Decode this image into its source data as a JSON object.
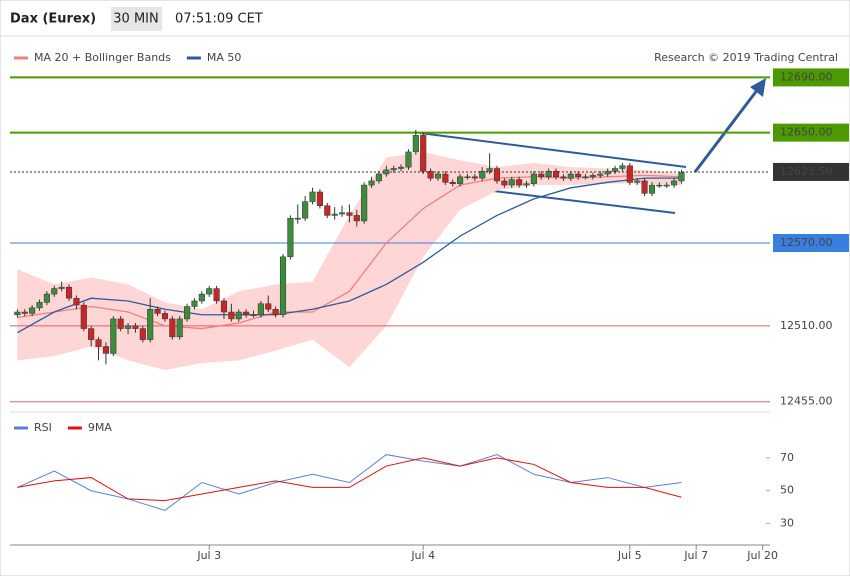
{
  "header": {
    "title": "Dax (Eurex)",
    "interval": "30 MIN",
    "time": "07:51:09 CET"
  },
  "chart_data": [
    {
      "type": "candlestick",
      "credit": "Research © 2019 Trading Central",
      "xlim": [
        -1,
        102
      ],
      "ylim": [
        12449,
        12699
      ],
      "xticks": [
        {
          "value": 26,
          "label": "Jul 3"
        },
        {
          "value": 55,
          "label": "Jul 4"
        },
        {
          "value": 83,
          "label": "Jul 5"
        },
        {
          "value": 92,
          "label": "Jul 7"
        },
        {
          "value": 101,
          "label": "Jul 20"
        }
      ],
      "up_color": "#3d8b3d",
      "down_color": "#c62828",
      "candles": [
        [
          12518,
          12522,
          12516,
          12520
        ],
        [
          12520,
          12522,
          12517,
          12519
        ],
        [
          12519,
          12525,
          12517,
          12523
        ],
        [
          12523,
          12529,
          12521,
          12527
        ],
        [
          12527,
          12535,
          12525,
          12533
        ],
        [
          12533,
          12539,
          12531,
          12537
        ],
        [
          12537,
          12542,
          12535,
          12538
        ],
        [
          12538,
          12540,
          12528,
          12530
        ],
        [
          12530,
          12532,
          12522,
          12525
        ],
        [
          12525,
          12527,
          12506,
          12508
        ],
        [
          12508,
          12510,
          12495,
          12500
        ],
        [
          12500,
          12502,
          12485,
          12495
        ],
        [
          12495,
          12498,
          12482,
          12490
        ],
        [
          12490,
          12517,
          12488,
          12515
        ],
        [
          12515,
          12517,
          12506,
          12508
        ],
        [
          12508,
          12512,
          12504,
          12510
        ],
        [
          12510,
          12512,
          12505,
          12508
        ],
        [
          12508,
          12510,
          12498,
          12500
        ],
        [
          12500,
          12530,
          12498,
          12522
        ],
        [
          12522,
          12524,
          12517,
          12519
        ],
        [
          12519,
          12521,
          12513,
          12515
        ],
        [
          12515,
          12517,
          12500,
          12502
        ],
        [
          12502,
          12517,
          12500,
          12515
        ],
        [
          12515,
          12526,
          12513,
          12524
        ],
        [
          12524,
          12530,
          12522,
          12528
        ],
        [
          12528,
          12535,
          12526,
          12533
        ],
        [
          12533,
          12539,
          12531,
          12537
        ],
        [
          12537,
          12539,
          12526,
          12528
        ],
        [
          12528,
          12530,
          12515,
          12520
        ],
        [
          12520,
          12526,
          12513,
          12515
        ],
        [
          12515,
          12522,
          12513,
          12520
        ],
        [
          12520,
          12522,
          12516,
          12518
        ],
        [
          12518,
          12521,
          12516,
          12518
        ],
        [
          12518,
          12528,
          12516,
          12526
        ],
        [
          12526,
          12532,
          12520,
          12522
        ],
        [
          12522,
          12524,
          12516,
          12518
        ],
        [
          12518,
          12562,
          12516,
          12560
        ],
        [
          12560,
          12590,
          12558,
          12588
        ],
        [
          12588,
          12598,
          12584,
          12588
        ],
        [
          12588,
          12604,
          12586,
          12600
        ],
        [
          12600,
          12610,
          12598,
          12607
        ],
        [
          12607,
          12609,
          12595,
          12597
        ],
        [
          12597,
          12599,
          12588,
          12590
        ],
        [
          12590,
          12596,
          12587,
          12591
        ],
        [
          12591,
          12597,
          12589,
          12592
        ],
        [
          12592,
          12598,
          12585,
          12590
        ],
        [
          12590,
          12594,
          12582,
          12586
        ],
        [
          12586,
          12614,
          12584,
          12612
        ],
        [
          12612,
          12618,
          12610,
          12615
        ],
        [
          12615,
          12622,
          12613,
          12620
        ],
        [
          12620,
          12626,
          12618,
          12623
        ],
        [
          12623,
          12626,
          12621,
          12624
        ],
        [
          12624,
          12627,
          12622,
          12625
        ],
        [
          12625,
          12638,
          12623,
          12636
        ],
        [
          12636,
          12652,
          12634,
          12648
        ],
        [
          12648,
          12650,
          12620,
          12622
        ],
        [
          12622,
          12624,
          12615,
          12617
        ],
        [
          12617,
          12622,
          12615,
          12620
        ],
        [
          12620,
          12622,
          12612,
          12614
        ],
        [
          12614,
          12616,
          12611,
          12613
        ],
        [
          12613,
          12620,
          12611,
          12618
        ],
        [
          12618,
          12620,
          12616,
          12618
        ],
        [
          12618,
          12620,
          12615,
          12617
        ],
        [
          12617,
          12625,
          12615,
          12622
        ],
        [
          12622,
          12635,
          12620,
          12624
        ],
        [
          12624,
          12626,
          12613,
          12615
        ],
        [
          12615,
          12617,
          12610,
          12612
        ],
        [
          12612,
          12618,
          12610,
          12616
        ],
        [
          12616,
          12618,
          12610,
          12612
        ],
        [
          12612,
          12615,
          12610,
          12613
        ],
        [
          12613,
          12622,
          12611,
          12620
        ],
        [
          12620,
          12622,
          12616,
          12618
        ],
        [
          12618,
          12624,
          12616,
          12622
        ],
        [
          12622,
          12624,
          12616,
          12618
        ],
        [
          12618,
          12620,
          12615,
          12617
        ],
        [
          12617,
          12622,
          12615,
          12620
        ],
        [
          12620,
          12622,
          12616,
          12618
        ],
        [
          12618,
          12620,
          12616,
          12618
        ],
        [
          12618,
          12621,
          12616,
          12619
        ],
        [
          12619,
          12622,
          12617,
          12620
        ],
        [
          12620,
          12624,
          12618,
          12622
        ],
        [
          12622,
          12626,
          12620,
          12624
        ],
        [
          12624,
          12628,
          12622,
          12626
        ],
        [
          12626,
          12628,
          12612,
          12614
        ],
        [
          12614,
          12617,
          12612,
          12615
        ],
        [
          12615,
          12617,
          12604,
          12606
        ],
        [
          12606,
          12614,
          12604,
          12612
        ],
        [
          12612,
          12614,
          12610,
          12612
        ],
        [
          12612,
          12614,
          12610,
          12612
        ],
        [
          12612,
          12617,
          12610,
          12615
        ],
        [
          12615,
          12623,
          12613,
          12621
        ]
      ],
      "series": [
        {
          "name": "MA 20 + Bollinger Bands",
          "color": "#f08080",
          "band_color": "#ffd6d6",
          "x": [
            0,
            5,
            10,
            15,
            20,
            25,
            30,
            35,
            40,
            45,
            50,
            55,
            60,
            65,
            70,
            75,
            80,
            85,
            90
          ],
          "values": [
            12516,
            12520,
            12524,
            12520,
            12510,
            12508,
            12512,
            12520,
            12520,
            12535,
            12570,
            12595,
            12612,
            12617,
            12618,
            12617,
            12618,
            12619,
            12618
          ],
          "upper": [
            12551,
            12540,
            12545,
            12540,
            12527,
            12522,
            12535,
            12540,
            12542,
            12590,
            12632,
            12636,
            12630,
            12625,
            12628,
            12625,
            12624,
            12623,
            12620
          ],
          "lower": [
            12485,
            12488,
            12495,
            12485,
            12478,
            12483,
            12485,
            12492,
            12500,
            12480,
            12510,
            12560,
            12594,
            12608,
            12612,
            12612,
            12613,
            12613,
            12612
          ]
        },
        {
          "name": "MA 50",
          "color": "#2f5b9a",
          "x": [
            0,
            5,
            10,
            15,
            20,
            25,
            30,
            35,
            40,
            45,
            50,
            55,
            60,
            65,
            70,
            75,
            80,
            85,
            90
          ],
          "values": [
            12505,
            12520,
            12530,
            12528,
            12522,
            12518,
            12518,
            12518,
            12522,
            12528,
            12540,
            12556,
            12575,
            12590,
            12602,
            12610,
            12614,
            12617,
            12617
          ]
        }
      ],
      "levels": [
        {
          "value": 12690,
          "label": "12690.00",
          "color": "#4c9a00",
          "text_color": "#111",
          "box": true,
          "width": 2
        },
        {
          "value": 12650,
          "label": "12650.00",
          "color": "#4c9a00",
          "text_color": "#111",
          "box": true,
          "width": 2
        },
        {
          "value": 12621.5,
          "label": "12621.50",
          "color": "#333333",
          "text_color": "#ffffff",
          "box": true,
          "width": 1,
          "dotted": true
        },
        {
          "value": 12570,
          "label": "12570.00",
          "color": "#3a7fe0",
          "text_color": "#ffffff",
          "box": true,
          "width": 1
        },
        {
          "value": 12510,
          "label": "12510.00",
          "color": "#e06060",
          "text_color": "#222",
          "box": false,
          "width": 1
        },
        {
          "value": 12455,
          "label": "12455.00",
          "color": "#e06060",
          "text_color": "#222",
          "box": false,
          "width": 1
        }
      ]
    },
    {
      "type": "line",
      "xlim": [
        -1,
        102
      ],
      "ylim": [
        20,
        90
      ],
      "yticks": [
        30,
        50,
        70
      ],
      "series": [
        {
          "name": "RSI",
          "color": "#5b80d8",
          "x": [
            0,
            5,
            10,
            15,
            20,
            25,
            30,
            35,
            40,
            45,
            50,
            55,
            60,
            65,
            70,
            75,
            80,
            85,
            90
          ],
          "values": [
            52,
            62,
            50,
            45,
            38,
            55,
            48,
            55,
            60,
            55,
            72,
            68,
            65,
            72,
            60,
            55,
            58,
            52,
            55
          ]
        },
        {
          "name": "9MA",
          "color": "#e01010",
          "x": [
            0,
            5,
            10,
            15,
            20,
            25,
            30,
            35,
            40,
            45,
            50,
            55,
            60,
            65,
            70,
            75,
            80,
            85,
            90
          ],
          "values": [
            52,
            56,
            58,
            45,
            44,
            48,
            52,
            56,
            52,
            52,
            65,
            70,
            65,
            70,
            66,
            55,
            52,
            52,
            46
          ]
        }
      ]
    }
  ]
}
